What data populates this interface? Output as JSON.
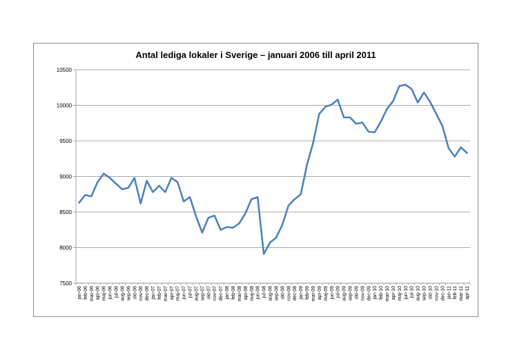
{
  "chart_data": {
    "type": "line",
    "title": "Antal lediga lokaler i Sverige – januari 2006 till april 2011",
    "xlabel": "",
    "ylabel": "",
    "ylim": [
      7500,
      10500
    ],
    "yticks": [
      7500,
      8000,
      8500,
      9000,
      9500,
      10000,
      10500
    ],
    "grid": true,
    "legend": "none",
    "line_color": "#4f81bd",
    "categories": [
      "jan-06",
      "feb-06",
      "mar-06",
      "apr-06",
      "maj-06",
      "jun-06",
      "jul-06",
      "aug-06",
      "sep-06",
      "okt-06",
      "nov-06",
      "dec-06",
      "jan-07",
      "feb-07",
      "mar-07",
      "apr-07",
      "maj-07",
      "jun-07",
      "jul-07",
      "aug-07",
      "sep-07",
      "okt-07",
      "nov-07",
      "dec-07",
      "jan-08",
      "feb-08",
      "mar-08",
      "apr-08",
      "maj-08",
      "jun-08",
      "jul-08",
      "aug-08",
      "sep-08",
      "okt-08",
      "nov-08",
      "dec-08",
      "jan-09",
      "feb-09",
      "mar-09",
      "apr-09",
      "maj-09",
      "jun-09",
      "jul-09",
      "aug-09",
      "sep-09",
      "okt-09",
      "nov-09",
      "dec-09",
      "jan-10",
      "feb-10",
      "mar-10",
      "apr-10",
      "maj-10",
      "jun-10",
      "jul-10",
      "aug-10",
      "sep-10",
      "okt-10",
      "nov-10",
      "dec-10",
      "jan-11",
      "feb-11",
      "mar-11",
      "apr-11"
    ],
    "values": [
      8630,
      8740,
      8720,
      8920,
      9040,
      8980,
      8900,
      8820,
      8840,
      8980,
      8620,
      8940,
      8780,
      8870,
      8780,
      8980,
      8920,
      8650,
      8710,
      8440,
      8210,
      8420,
      8450,
      8250,
      8290,
      8280,
      8340,
      8480,
      8680,
      8710,
      7910,
      8070,
      8140,
      8320,
      8590,
      8680,
      8750,
      9160,
      9470,
      9880,
      9980,
      10010,
      10080,
      9830,
      9830,
      9740,
      9760,
      9630,
      9620,
      9770,
      9950,
      10060,
      10270,
      10290,
      10230,
      10040,
      10180,
      10050,
      9880,
      9710,
      9400,
      9280,
      9410,
      9330
    ]
  }
}
